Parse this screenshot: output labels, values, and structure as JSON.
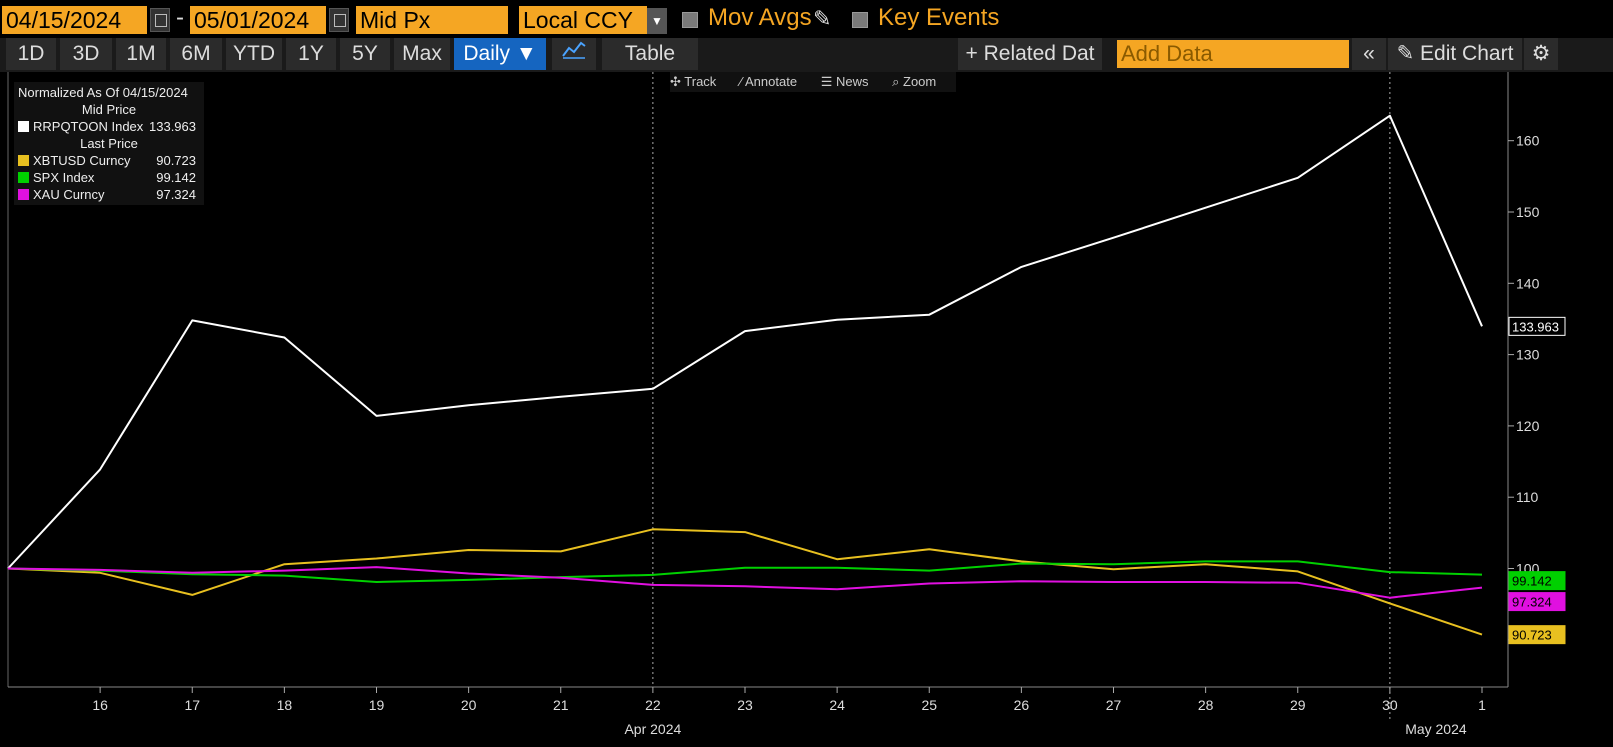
{
  "toolbar": {
    "start_date": "04/15/2024",
    "dash": "-",
    "end_date": "05/01/2024",
    "field": "Mid Px",
    "currency": "Local CCY",
    "mov_avgs": "Mov Avgs",
    "key_events": "Key Events"
  },
  "nav": {
    "ranges": [
      "1D",
      "3D",
      "1M",
      "6M",
      "YTD",
      "1Y",
      "5Y",
      "Max"
    ],
    "frequency": "Daily ▼",
    "table": "Table",
    "related": "+ Related Dat",
    "add_data_placeholder": "Add Data",
    "collapse": "«",
    "edit_chart": "Edit Chart",
    "settings": "⚙"
  },
  "chart_tools": {
    "track": "Track",
    "annotate": "Annotate",
    "news": "News",
    "zoom": "Zoom"
  },
  "legend": {
    "normalized": "Normalized As Of 04/15/2024",
    "mid_price": "Mid Price",
    "last_price": "Last Price",
    "items": [
      {
        "name": "RRPQTOON Index",
        "value": "133.963",
        "color": "#ffffff"
      },
      {
        "name": "XBTUSD Curncy",
        "value": "90.723",
        "color": "#e8c020"
      },
      {
        "name": "SPX Index",
        "value": "99.142",
        "color": "#00d000"
      },
      {
        "name": "XAU Curncy",
        "value": "97.324",
        "color": "#e010e0"
      }
    ]
  },
  "chart_data": {
    "type": "line",
    "x": [
      "15",
      "16",
      "17",
      "18",
      "19",
      "20",
      "21",
      "22",
      "23",
      "24",
      "25",
      "26",
      "27",
      "28",
      "29",
      "30",
      "1"
    ],
    "x_tick_labels": [
      "16",
      "17",
      "18",
      "19",
      "20",
      "21",
      "22",
      "23",
      "24",
      "25",
      "26",
      "27",
      "28",
      "29",
      "30",
      "1"
    ],
    "month_labels": [
      "Apr 2024",
      "May 2024"
    ],
    "ylim": [
      85,
      170
    ],
    "y_ticks": [
      90,
      100,
      110,
      120,
      130,
      140,
      150,
      160
    ],
    "y_tick_labels": [
      "100",
      "110",
      "120",
      "130",
      "140",
      "150",
      "160"
    ],
    "series": [
      {
        "name": "RRPQTOON Index",
        "color": "#ffffff",
        "values": [
          100,
          113.9,
          134.8,
          132.4,
          121.4,
          122.9,
          124.1,
          125.2,
          133.3,
          134.9,
          135.6,
          142.3,
          146.4,
          150.6,
          154.8,
          163.5,
          133.963
        ],
        "end_label": "133.963"
      },
      {
        "name": "XBTUSD Curncy",
        "color": "#e8c020",
        "values": [
          100,
          99.4,
          96.3,
          100.6,
          101.4,
          102.6,
          102.4,
          105.5,
          105.1,
          101.3,
          102.7,
          101.0,
          99.9,
          100.6,
          99.6,
          95.1,
          90.723
        ],
        "end_label": "90.723"
      },
      {
        "name": "SPX Index",
        "color": "#00d000",
        "values": [
          100,
          99.7,
          99.2,
          99.0,
          98.1,
          98.4,
          98.8,
          99.1,
          100.1,
          100.1,
          99.7,
          100.7,
          100.6,
          101.0,
          101.0,
          99.5,
          99.142
        ],
        "end_label": "99.142"
      },
      {
        "name": "XAU Curncy",
        "color": "#e010e0",
        "values": [
          100,
          99.8,
          99.4,
          99.7,
          100.2,
          99.3,
          98.7,
          97.7,
          97.5,
          97.1,
          97.9,
          98.2,
          98.1,
          98.1,
          98.0,
          95.9,
          97.324
        ],
        "end_label": "97.324"
      }
    ]
  }
}
